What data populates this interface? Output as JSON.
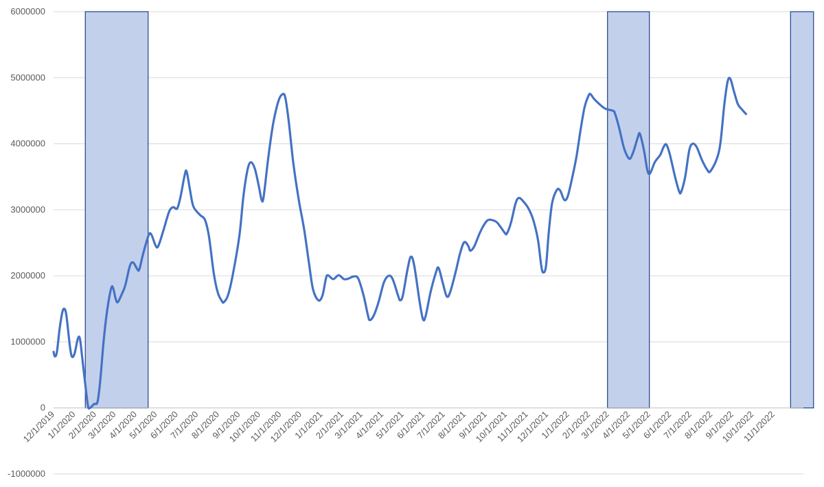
{
  "chart_data": {
    "type": "line",
    "title": "",
    "xlabel": "",
    "ylabel": "",
    "ylim": [
      -1000000,
      6000000
    ],
    "y_ticks": [
      -1000000,
      0,
      1000000,
      2000000,
      3000000,
      4000000,
      5000000,
      6000000
    ],
    "y_tick_labels": [
      "-1000000",
      "0",
      "1000000",
      "2000000",
      "3000000",
      "4000000",
      "5000000",
      "6000000"
    ],
    "x_tick_labels": [
      "12/1/2019",
      "1/1/2020",
      "2/1/2020",
      "3/1/2020",
      "4/1/2020",
      "5/1/2020",
      "6/1/2020",
      "7/1/2020",
      "8/1/2020",
      "9/1/2020",
      "10/1/2020",
      "11/1/2020",
      "12/1/2020",
      "1/1/2021",
      "2/1/2021",
      "3/1/2021",
      "4/1/2021",
      "5/1/2021",
      "6/1/2021",
      "7/1/2021",
      "8/1/2021",
      "9/1/2021",
      "10/1/2021",
      "11/1/2021",
      "12/1/2021",
      "1/1/2022",
      "2/1/2022",
      "3/1/2022",
      "4/1/2022",
      "5/1/2022",
      "6/1/2022",
      "7/1/2022",
      "8/1/2022",
      "9/1/2022",
      "10/1/2022",
      "11/1/2022"
    ],
    "xlim": [
      "12/1/2019",
      "12/15/2022"
    ],
    "grid": true,
    "legend": "none",
    "colors": {
      "line": "#4472c4",
      "shade_fill": "#c3d0ec",
      "shade_border": "#1f3f88"
    },
    "shaded_periods": [
      {
        "start": "1/17/2020",
        "end": "4/19/2020"
      },
      {
        "start": "2/28/2022",
        "end": "5/1/2022"
      },
      {
        "start": "11/26/2022",
        "end": "12/30/2022"
      }
    ],
    "series": [
      {
        "points": [
          [
            "12/1/2019",
            850000
          ],
          [
            "12/3/2019",
            780000
          ],
          [
            "12/6/2019",
            850000
          ],
          [
            "12/10/2019",
            1200000
          ],
          [
            "12/14/2019",
            1450000
          ],
          [
            "12/17/2019",
            1500000
          ],
          [
            "12/20/2019",
            1400000
          ],
          [
            "12/25/2019",
            950000
          ],
          [
            "12/28/2019",
            780000
          ],
          [
            "1/1/2020",
            820000
          ],
          [
            "1/6/2020",
            1050000
          ],
          [
            "1/9/2020",
            1050000
          ],
          [
            "1/12/2020",
            800000
          ],
          [
            "1/17/2020",
            350000
          ],
          [
            "1/21/2020",
            30000
          ],
          [
            "1/24/2020",
            0
          ],
          [
            "1/30/2020",
            60000
          ],
          [
            "2/4/2020",
            90000
          ],
          [
            "2/8/2020",
            400000
          ],
          [
            "2/13/2020",
            1000000
          ],
          [
            "2/18/2020",
            1450000
          ],
          [
            "2/24/2020",
            1800000
          ],
          [
            "2/27/2020",
            1820000
          ],
          [
            "3/2/2020",
            1650000
          ],
          [
            "3/5/2020",
            1600000
          ],
          [
            "3/10/2020",
            1700000
          ],
          [
            "3/16/2020",
            1850000
          ],
          [
            "3/23/2020",
            2150000
          ],
          [
            "3/28/2020",
            2200000
          ],
          [
            "4/3/2020",
            2100000
          ],
          [
            "4/6/2020",
            2100000
          ],
          [
            "4/12/2020",
            2350000
          ],
          [
            "4/20/2020",
            2620000
          ],
          [
            "4/24/2020",
            2620000
          ],
          [
            "4/30/2020",
            2460000
          ],
          [
            "5/4/2020",
            2450000
          ],
          [
            "5/12/2020",
            2700000
          ],
          [
            "5/20/2020",
            2970000
          ],
          [
            "5/26/2020",
            3040000
          ],
          [
            "6/1/2020",
            3020000
          ],
          [
            "6/6/2020",
            3200000
          ],
          [
            "6/12/2020",
            3520000
          ],
          [
            "6/15/2020",
            3580000
          ],
          [
            "6/20/2020",
            3300000
          ],
          [
            "6/25/2020",
            3050000
          ],
          [
            "7/5/2020",
            2920000
          ],
          [
            "7/12/2020",
            2850000
          ],
          [
            "7/18/2020",
            2600000
          ],
          [
            "7/25/2020",
            2050000
          ],
          [
            "7/31/2020",
            1750000
          ],
          [
            "8/6/2020",
            1620000
          ],
          [
            "8/9/2020",
            1600000
          ],
          [
            "8/15/2020",
            1700000
          ],
          [
            "8/22/2020",
            2000000
          ],
          [
            "9/1/2020",
            2600000
          ],
          [
            "9/7/2020",
            3200000
          ],
          [
            "9/13/2020",
            3600000
          ],
          [
            "9/18/2020",
            3720000
          ],
          [
            "9/24/2020",
            3620000
          ],
          [
            "9/30/2020",
            3350000
          ],
          [
            "10/4/2020",
            3150000
          ],
          [
            "10/7/2020",
            3200000
          ],
          [
            "10/14/2020",
            3800000
          ],
          [
            "10/21/2020",
            4300000
          ],
          [
            "10/29/2020",
            4650000
          ],
          [
            "11/4/2020",
            4750000
          ],
          [
            "11/8/2020",
            4700000
          ],
          [
            "11/13/2020",
            4350000
          ],
          [
            "11/20/2020",
            3700000
          ],
          [
            "11/28/2020",
            3150000
          ],
          [
            "12/6/2020",
            2700000
          ],
          [
            "12/13/2020",
            2200000
          ],
          [
            "12/19/2020",
            1800000
          ],
          [
            "12/27/2020",
            1630000
          ],
          [
            "1/2/2021",
            1700000
          ],
          [
            "1/7/2021",
            1950000
          ],
          [
            "1/10/2021",
            2010000
          ],
          [
            "1/18/2021",
            1950000
          ],
          [
            "1/26/2021",
            2010000
          ],
          [
            "2/3/2021",
            1950000
          ],
          [
            "2/10/2021",
            1960000
          ],
          [
            "2/17/2021",
            1990000
          ],
          [
            "2/24/2021",
            1960000
          ],
          [
            "3/4/2021",
            1700000
          ],
          [
            "3/10/2021",
            1420000
          ],
          [
            "3/13/2021",
            1330000
          ],
          [
            "3/19/2021",
            1400000
          ],
          [
            "3/26/2021",
            1600000
          ],
          [
            "4/3/2021",
            1900000
          ],
          [
            "4/10/2021",
            2000000
          ],
          [
            "4/16/2021",
            1950000
          ],
          [
            "4/24/2021",
            1700000
          ],
          [
            "4/27/2021",
            1630000
          ],
          [
            "5/1/2021",
            1700000
          ],
          [
            "5/8/2021",
            2100000
          ],
          [
            "5/13/2021",
            2290000
          ],
          [
            "5/18/2021",
            2150000
          ],
          [
            "5/26/2021",
            1600000
          ],
          [
            "5/31/2021",
            1340000
          ],
          [
            "6/4/2021",
            1400000
          ],
          [
            "6/11/2021",
            1750000
          ],
          [
            "6/19/2021",
            2050000
          ],
          [
            "6/23/2021",
            2120000
          ],
          [
            "6/29/2021",
            1900000
          ],
          [
            "7/5/2021",
            1690000
          ],
          [
            "7/10/2021",
            1750000
          ],
          [
            "7/18/2021",
            2050000
          ],
          [
            "7/25/2021",
            2350000
          ],
          [
            "7/31/2021",
            2510000
          ],
          [
            "8/6/2021",
            2450000
          ],
          [
            "8/9/2021",
            2380000
          ],
          [
            "8/15/2021",
            2450000
          ],
          [
            "8/23/2021",
            2650000
          ],
          [
            "8/31/2021",
            2800000
          ],
          [
            "9/6/2021",
            2850000
          ],
          [
            "9/16/2021",
            2820000
          ],
          [
            "9/22/2021",
            2750000
          ],
          [
            "9/29/2021",
            2650000
          ],
          [
            "10/2/2021",
            2640000
          ],
          [
            "10/8/2021",
            2800000
          ],
          [
            "10/15/2021",
            3100000
          ],
          [
            "10/20/2021",
            3180000
          ],
          [
            "10/27/2021",
            3120000
          ],
          [
            "11/3/2021",
            3020000
          ],
          [
            "11/10/2021",
            2850000
          ],
          [
            "11/17/2021",
            2550000
          ],
          [
            "11/22/2021",
            2150000
          ],
          [
            "11/25/2021",
            2050000
          ],
          [
            "11/29/2021",
            2150000
          ],
          [
            "12/3/2021",
            2650000
          ],
          [
            "12/8/2021",
            3100000
          ],
          [
            "12/15/2021",
            3300000
          ],
          [
            "12/20/2021",
            3290000
          ],
          [
            "12/26/2021",
            3150000
          ],
          [
            "12/31/2021",
            3200000
          ],
          [
            "1/6/2022",
            3450000
          ],
          [
            "1/13/2022",
            3800000
          ],
          [
            "1/19/2022",
            4200000
          ],
          [
            "1/25/2022",
            4550000
          ],
          [
            "1/31/2022",
            4730000
          ],
          [
            "2/3/2022",
            4750000
          ],
          [
            "2/8/2022",
            4680000
          ],
          [
            "2/16/2022",
            4600000
          ],
          [
            "2/25/2022",
            4530000
          ],
          [
            "3/8/2022",
            4500000
          ],
          [
            "3/11/2022",
            4460000
          ],
          [
            "3/17/2022",
            4250000
          ],
          [
            "3/24/2022",
            3950000
          ],
          [
            "3/30/2022",
            3800000
          ],
          [
            "4/3/2022",
            3780000
          ],
          [
            "4/8/2022",
            3900000
          ],
          [
            "4/14/2022",
            4100000
          ],
          [
            "4/17/2022",
            4150000
          ],
          [
            "4/23/2022",
            3900000
          ],
          [
            "4/28/2022",
            3600000
          ],
          [
            "5/2/2022",
            3550000
          ],
          [
            "5/9/2022",
            3720000
          ],
          [
            "5/17/2022",
            3830000
          ],
          [
            "5/22/2022",
            3950000
          ],
          [
            "5/26/2022",
            3990000
          ],
          [
            "5/31/2022",
            3850000
          ],
          [
            "6/8/2022",
            3500000
          ],
          [
            "6/14/2022",
            3280000
          ],
          [
            "6/17/2022",
            3270000
          ],
          [
            "6/23/2022",
            3500000
          ],
          [
            "6/29/2022",
            3900000
          ],
          [
            "7/4/2022",
            4000000
          ],
          [
            "7/10/2022",
            3950000
          ],
          [
            "7/18/2022",
            3750000
          ],
          [
            "7/26/2022",
            3600000
          ],
          [
            "7/30/2022",
            3580000
          ],
          [
            "8/8/2022",
            3750000
          ],
          [
            "8/14/2022",
            4000000
          ],
          [
            "8/20/2022",
            4600000
          ],
          [
            "8/25/2022",
            4950000
          ],
          [
            "8/29/2022",
            4980000
          ],
          [
            "9/3/2022",
            4800000
          ],
          [
            "9/9/2022",
            4600000
          ],
          [
            "9/15/2022",
            4520000
          ],
          [
            "9/21/2022",
            4450000
          ]
        ]
      }
    ]
  }
}
